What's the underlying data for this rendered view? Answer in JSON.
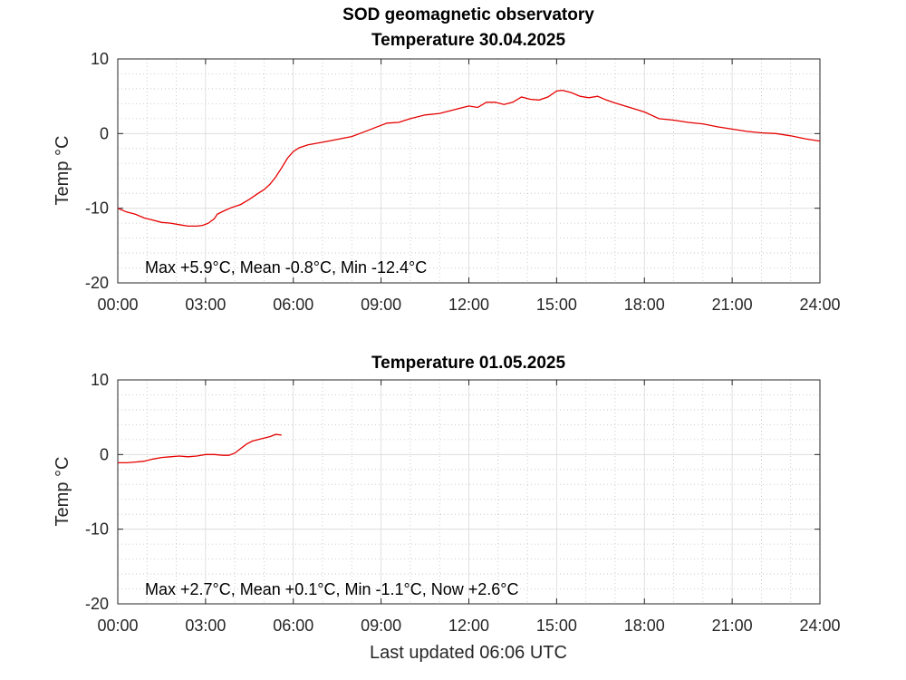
{
  "figure": {
    "title": "SOD geomagnetic observatory",
    "footer": "Last updated 06:06 UTC"
  },
  "chart_data": [
    {
      "type": "line",
      "title": "Temperature 30.04.2025",
      "xlabel": "",
      "ylabel": "Temp °C",
      "xlim": [
        0,
        24
      ],
      "ylim": [
        -20,
        10
      ],
      "xticks": [
        0,
        3,
        6,
        9,
        12,
        15,
        18,
        21,
        24
      ],
      "xtick_labels": [
        "00:00",
        "03:00",
        "06:00",
        "09:00",
        "12:00",
        "15:00",
        "18:00",
        "21:00",
        "24:00"
      ],
      "yticks": [
        -20,
        -10,
        0,
        10
      ],
      "ytick_labels": [
        "-20",
        "-10",
        "0",
        "10"
      ],
      "grid": true,
      "stats": "Max +5.9°C, Mean -0.8°C, Min -12.4°C",
      "series": [
        {
          "name": "Temperature",
          "color": "#e60000",
          "x": [
            0,
            0.3,
            0.6,
            0.9,
            1.2,
            1.5,
            1.8,
            2.1,
            2.4,
            2.7,
            2.9,
            3.1,
            3.3,
            3.4,
            3.6,
            3.9,
            4.2,
            4.5,
            4.8,
            5.0,
            5.2,
            5.4,
            5.6,
            5.8,
            6.0,
            6.2,
            6.5,
            6.8,
            7.2,
            7.6,
            8.0,
            8.4,
            8.8,
            9.2,
            9.6,
            10.0,
            10.5,
            11.0,
            11.5,
            12.0,
            12.3,
            12.6,
            12.9,
            13.2,
            13.5,
            13.8,
            14.1,
            14.4,
            14.7,
            15.0,
            15.2,
            15.5,
            15.8,
            16.1,
            16.4,
            16.7,
            17.0,
            17.5,
            18.0,
            18.5,
            19.0,
            19.5,
            20.0,
            20.5,
            21.0,
            21.5,
            22.0,
            22.5,
            23.0,
            23.5,
            24.0
          ],
          "y": [
            -10.0,
            -10.5,
            -10.8,
            -11.3,
            -11.6,
            -11.9,
            -12.0,
            -12.2,
            -12.4,
            -12.4,
            -12.3,
            -12.0,
            -11.4,
            -10.8,
            -10.4,
            -9.9,
            -9.5,
            -8.8,
            -8.0,
            -7.5,
            -6.8,
            -5.8,
            -4.6,
            -3.3,
            -2.4,
            -1.9,
            -1.5,
            -1.3,
            -1.0,
            -0.7,
            -0.4,
            0.2,
            0.8,
            1.4,
            1.5,
            2.0,
            2.5,
            2.7,
            3.2,
            3.7,
            3.5,
            4.2,
            4.2,
            3.9,
            4.2,
            4.9,
            4.6,
            4.5,
            4.9,
            5.7,
            5.8,
            5.5,
            5.0,
            4.8,
            5.0,
            4.5,
            4.1,
            3.5,
            2.9,
            2.0,
            1.8,
            1.5,
            1.3,
            0.9,
            0.6,
            0.3,
            0.1,
            0.0,
            -0.3,
            -0.7,
            -1.0
          ]
        }
      ]
    },
    {
      "type": "line",
      "title": "Temperature 01.05.2025",
      "xlabel": "",
      "ylabel": "Temp °C",
      "xlim": [
        0,
        24
      ],
      "ylim": [
        -20,
        10
      ],
      "xticks": [
        0,
        3,
        6,
        9,
        12,
        15,
        18,
        21,
        24
      ],
      "xtick_labels": [
        "00:00",
        "03:00",
        "06:00",
        "09:00",
        "12:00",
        "15:00",
        "18:00",
        "21:00",
        "24:00"
      ],
      "yticks": [
        -20,
        -10,
        0,
        10
      ],
      "ytick_labels": [
        "-20",
        "-10",
        "0",
        "10"
      ],
      "grid": true,
      "stats": "Max +2.7°C, Mean +0.1°C, Min -1.1°C, Now +2.6°C",
      "series": [
        {
          "name": "Temperature",
          "color": "#e60000",
          "x": [
            0,
            0.3,
            0.6,
            0.9,
            1.2,
            1.5,
            1.8,
            2.1,
            2.4,
            2.7,
            3.0,
            3.3,
            3.6,
            3.8,
            4.0,
            4.2,
            4.4,
            4.6,
            4.9,
            5.2,
            5.4,
            5.6
          ],
          "y": [
            -1.1,
            -1.1,
            -1.0,
            -0.9,
            -0.6,
            -0.4,
            -0.3,
            -0.2,
            -0.3,
            -0.2,
            0.0,
            0.0,
            -0.1,
            -0.1,
            0.2,
            0.8,
            1.4,
            1.8,
            2.1,
            2.4,
            2.7,
            2.6
          ]
        }
      ]
    }
  ]
}
